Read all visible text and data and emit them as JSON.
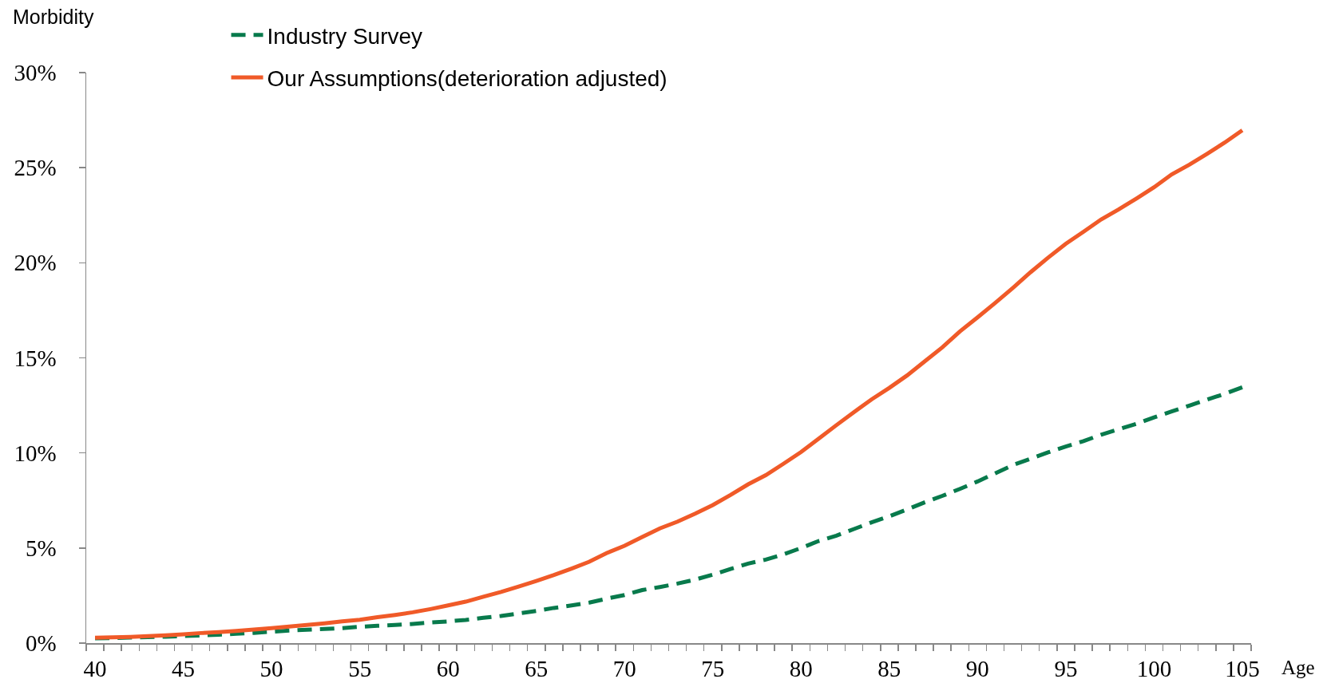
{
  "chart_data": {
    "type": "line",
    "ylabel": "Morbidity",
    "xlabel": "Age",
    "legend": "top left",
    "categories": [
      "40",
      null,
      null,
      null,
      null,
      "45",
      null,
      null,
      null,
      null,
      "50",
      null,
      null,
      null,
      null,
      "55",
      null,
      null,
      null,
      null,
      "60",
      null,
      null,
      null,
      null,
      "65",
      null,
      null,
      null,
      null,
      "70",
      null,
      null,
      null,
      null,
      "75",
      null,
      null,
      null,
      null,
      "80",
      null,
      null,
      null,
      null,
      "85",
      null,
      null,
      null,
      null,
      "90",
      null,
      null,
      null,
      null,
      "95",
      null,
      null,
      null,
      null,
      "100",
      null,
      null,
      null,
      null,
      "105"
    ],
    "series": [
      {
        "name": "Industry Survey",
        "color": "#087a4c",
        "line_style": "dashed",
        "values": [
          0.25,
          0.27,
          0.29,
          0.31,
          0.34,
          0.37,
          0.4,
          0.44,
          0.49,
          0.54,
          0.6,
          0.66,
          0.7,
          0.74,
          0.79,
          0.86,
          0.91,
          0.95,
          1.01,
          1.08,
          1.14,
          1.22,
          1.33,
          1.43,
          1.56,
          1.69,
          1.85,
          1.98,
          2.13,
          2.34,
          2.53,
          2.79,
          2.95,
          3.13,
          3.34,
          3.6,
          3.9,
          4.18,
          4.39,
          4.67,
          5.0,
          5.37,
          5.65,
          6.0,
          6.35,
          6.67,
          7.03,
          7.4,
          7.74,
          8.11,
          8.5,
          8.93,
          9.36,
          9.69,
          10.03,
          10.34,
          10.62,
          10.96,
          11.25,
          11.53,
          11.87,
          12.18,
          12.49,
          12.8,
          13.11,
          13.45
        ]
      },
      {
        "name": "Our Assumptions(deterioration adjusted)",
        "color": "#f05a28",
        "line_style": "solid",
        "values": [
          0.28,
          0.3,
          0.33,
          0.37,
          0.41,
          0.46,
          0.53,
          0.58,
          0.64,
          0.71,
          0.79,
          0.87,
          0.95,
          1.04,
          1.14,
          1.23,
          1.36,
          1.48,
          1.62,
          1.79,
          1.98,
          2.18,
          2.44,
          2.69,
          2.97,
          3.27,
          3.58,
          3.92,
          4.28,
          4.74,
          5.12,
          5.58,
          6.03,
          6.39,
          6.81,
          7.26,
          7.79,
          8.35,
          8.83,
          9.43,
          10.05,
          10.75,
          11.46,
          12.15,
          12.82,
          13.42,
          14.07,
          14.81,
          15.55,
          16.39,
          17.13,
          17.89,
          18.68,
          19.5,
          20.27,
          21.0,
          21.63,
          22.28,
          22.81,
          23.38,
          23.97,
          24.65,
          25.16,
          25.73,
          26.32,
          26.97
        ]
      }
    ],
    "ylim": [
      0,
      30
    ],
    "yticks": [
      {
        "value": 0,
        "label": "0%"
      },
      {
        "value": 5,
        "label": "5%"
      },
      {
        "value": 10,
        "label": "10%"
      },
      {
        "value": 15,
        "label": "15%"
      },
      {
        "value": 20,
        "label": "20%"
      },
      {
        "value": 25,
        "label": "25%"
      },
      {
        "value": 30,
        "label": "30%"
      }
    ]
  }
}
